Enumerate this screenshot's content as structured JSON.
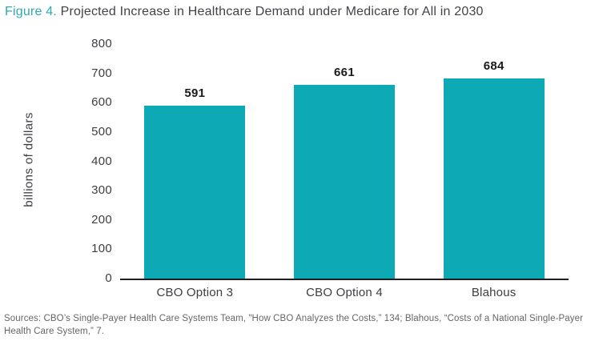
{
  "title": {
    "prefix": "Figure 4.",
    "text": " Projected Increase in Healthcare Demand under Medicare for All in 2030"
  },
  "source": "Sources: CBO’s Single-Payer Health Care Systems Team, \"How CBO Analyzes the Costs,” 134; Blahous, “Costs of a National Single-Payer Health Care System,” 7.",
  "colors": {
    "bar": "#0da9b5",
    "title_prefix": "#2fa9b4",
    "title_text": "#404448",
    "axis_text": "#3b3e42",
    "value_text": "#1a1a1a",
    "source_text": "#63666a"
  },
  "chart_data": {
    "type": "bar",
    "categories": [
      "CBO Option 3",
      "CBO Option 4",
      "Blahous"
    ],
    "values": [
      591,
      661,
      684
    ],
    "value_labels": [
      "591",
      "661",
      "684"
    ],
    "title": "",
    "xlabel": "",
    "ylabel": "billions of dollars",
    "ylim": [
      0,
      800
    ],
    "yticks": [
      0,
      100,
      200,
      300,
      400,
      500,
      600,
      700,
      800
    ],
    "grid": false,
    "legend_position": "none",
    "bar_color": "#0da9b5"
  }
}
